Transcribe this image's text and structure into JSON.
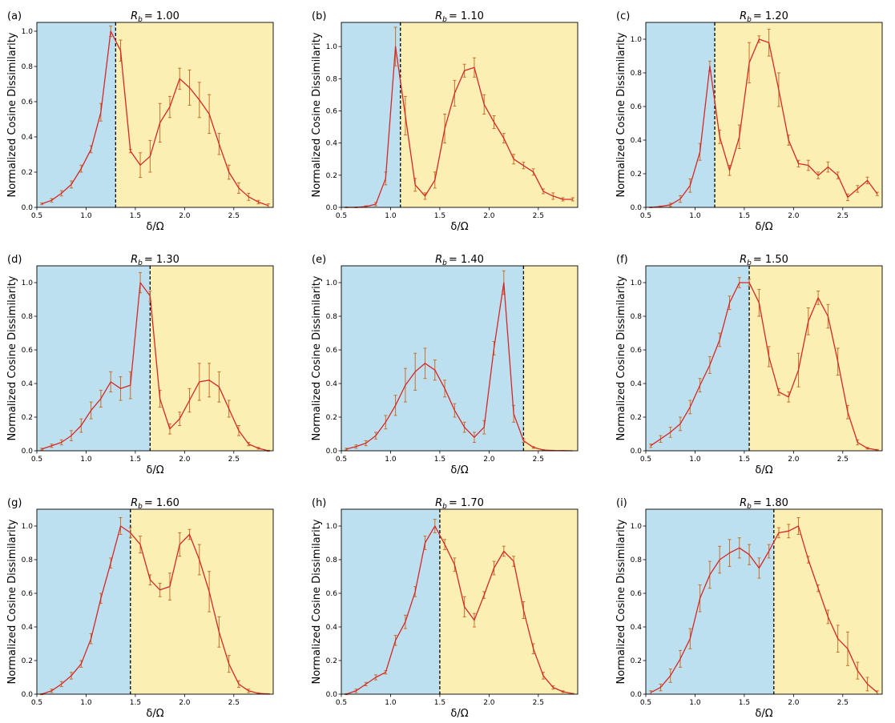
{
  "figure": {
    "colors": {
      "phase_left": "#bde0f0",
      "phase_right": "#fcefb4",
      "line": "#d62728",
      "errorbar": "#c8702a",
      "divider": "#000000"
    }
  },
  "chart_data": [
    {
      "type": "line",
      "panel": "(a)",
      "title_symbol": "R",
      "title_subscript": "b",
      "title_value": "= 1.00",
      "xlabel": "δ/Ω",
      "ylabel": "Normalized Cosine Dissimilarity",
      "xlim": [
        0.5,
        2.9
      ],
      "ylim": [
        0,
        1.05
      ],
      "xticks": [
        0.5,
        1.0,
        1.5,
        2.0,
        2.5
      ],
      "xtick_labels": [
        "0.5",
        "1.0",
        "1.5",
        "2.0",
        "2.5"
      ],
      "yticks": [
        0,
        0.2,
        0.4,
        0.6,
        0.8,
        1.0
      ],
      "ytick_labels": [
        "0.0",
        "0.2",
        "0.4",
        "0.6",
        "0.8",
        "1.0"
      ],
      "boundary": 1.3,
      "x": [
        0.55,
        0.65,
        0.75,
        0.85,
        0.95,
        1.05,
        1.15,
        1.25,
        1.35,
        1.45,
        1.55,
        1.65,
        1.75,
        1.85,
        1.95,
        2.05,
        2.15,
        2.25,
        2.35,
        2.45,
        2.55,
        2.65,
        2.75,
        2.85
      ],
      "y": [
        0.02,
        0.04,
        0.08,
        0.13,
        0.22,
        0.33,
        0.54,
        1.0,
        0.89,
        0.32,
        0.24,
        0.29,
        0.48,
        0.57,
        0.73,
        0.68,
        0.61,
        0.53,
        0.36,
        0.2,
        0.11,
        0.06,
        0.03,
        0.01
      ],
      "err": [
        0.005,
        0.01,
        0.015,
        0.02,
        0.02,
        0.02,
        0.05,
        0.03,
        0.06,
        0.01,
        0.07,
        0.09,
        0.11,
        0.06,
        0.06,
        0.1,
        0.1,
        0.11,
        0.06,
        0.04,
        0.03,
        0.02,
        0.01,
        0.01
      ]
    },
    {
      "type": "line",
      "panel": "(b)",
      "title_symbol": "R",
      "title_subscript": "b",
      "title_value": "= 1.10",
      "xlabel": "δ/Ω",
      "ylabel": "Normalized Cosine Dissimilarity",
      "xlim": [
        0.5,
        2.9
      ],
      "ylim": [
        0,
        1.15
      ],
      "xticks": [
        0.5,
        1.0,
        1.5,
        2.0,
        2.5
      ],
      "xtick_labels": [
        "0.5",
        "1.0",
        "1.5",
        "2.0",
        "2.5"
      ],
      "yticks": [
        0,
        0.2,
        0.4,
        0.6,
        0.8,
        1.0
      ],
      "ytick_labels": [
        "0.0",
        "0.2",
        "0.4",
        "0.6",
        "0.8",
        "1.0"
      ],
      "boundary": 1.1,
      "x": [
        0.55,
        0.65,
        0.75,
        0.85,
        0.95,
        1.05,
        1.15,
        1.25,
        1.35,
        1.45,
        1.55,
        1.65,
        1.75,
        1.85,
        1.95,
        2.05,
        2.15,
        2.25,
        2.35,
        2.45,
        2.55,
        2.65,
        2.75,
        2.85
      ],
      "y": [
        0.0,
        0.0,
        0.005,
        0.02,
        0.18,
        1.0,
        0.57,
        0.14,
        0.07,
        0.17,
        0.49,
        0.71,
        0.85,
        0.87,
        0.64,
        0.53,
        0.43,
        0.3,
        0.26,
        0.22,
        0.1,
        0.07,
        0.05,
        0.05
      ],
      "err": [
        0.002,
        0.002,
        0.005,
        0.01,
        0.04,
        0.12,
        0.12,
        0.04,
        0.02,
        0.05,
        0.09,
        0.08,
        0.04,
        0.06,
        0.06,
        0.04,
        0.03,
        0.03,
        0.02,
        0.02,
        0.015,
        0.02,
        0.01,
        0.01
      ]
    },
    {
      "type": "line",
      "panel": "(c)",
      "title_symbol": "R",
      "title_subscript": "b",
      "title_value": "= 1.20",
      "xlabel": "δ/Ω",
      "ylabel": "Normalized Cosine Dissimilarity",
      "xlim": [
        0.5,
        2.9
      ],
      "ylim": [
        0,
        1.1
      ],
      "xticks": [
        0.5,
        1.0,
        1.5,
        2.0,
        2.5
      ],
      "xtick_labels": [
        "0.5",
        "1.0",
        "1.5",
        "2.0",
        "2.5"
      ],
      "yticks": [
        0,
        0.2,
        0.4,
        0.6,
        0.8,
        1.0
      ],
      "ytick_labels": [
        "0.0",
        "0.2",
        "0.4",
        "0.6",
        "0.8",
        "1.0"
      ],
      "boundary": 1.2,
      "x": [
        0.55,
        0.65,
        0.75,
        0.85,
        0.95,
        1.05,
        1.15,
        1.25,
        1.35,
        1.45,
        1.55,
        1.65,
        1.75,
        1.85,
        1.95,
        2.05,
        2.15,
        2.25,
        2.35,
        2.45,
        2.55,
        2.65,
        2.75,
        2.85
      ],
      "y": [
        0.0,
        0.005,
        0.015,
        0.05,
        0.13,
        0.33,
        0.84,
        0.42,
        0.22,
        0.42,
        0.86,
        1.0,
        0.98,
        0.7,
        0.4,
        0.26,
        0.25,
        0.19,
        0.24,
        0.19,
        0.06,
        0.11,
        0.16,
        0.08
      ],
      "err": [
        0.002,
        0.003,
        0.01,
        0.02,
        0.04,
        0.05,
        0.03,
        0.04,
        0.03,
        0.07,
        0.12,
        0.02,
        0.08,
        0.1,
        0.03,
        0.02,
        0.03,
        0.02,
        0.03,
        0.02,
        0.02,
        0.02,
        0.02,
        0.01
      ]
    },
    {
      "type": "line",
      "panel": "(d)",
      "title_symbol": "R",
      "title_subscript": "b",
      "title_value": "= 1.30",
      "xlabel": "δ/Ω",
      "ylabel": "Normalized Cosine Dissimilarity",
      "xlim": [
        0.5,
        2.9
      ],
      "ylim": [
        0,
        1.1
      ],
      "xticks": [
        0.5,
        1.0,
        1.5,
        2.0,
        2.5
      ],
      "xtick_labels": [
        "0.5",
        "1.0",
        "1.5",
        "2.0",
        "2.5"
      ],
      "yticks": [
        0,
        0.2,
        0.4,
        0.6,
        0.8,
        1.0
      ],
      "ytick_labels": [
        "0.0",
        "0.2",
        "0.4",
        "0.6",
        "0.8",
        "1.0"
      ],
      "boundary": 1.65,
      "x": [
        0.55,
        0.65,
        0.75,
        0.85,
        0.95,
        1.05,
        1.15,
        1.25,
        1.35,
        1.45,
        1.55,
        1.65,
        1.75,
        1.85,
        1.95,
        2.05,
        2.15,
        2.25,
        2.35,
        2.45,
        2.55,
        2.65,
        2.75,
        2.85
      ],
      "y": [
        0.01,
        0.03,
        0.05,
        0.09,
        0.15,
        0.24,
        0.31,
        0.41,
        0.37,
        0.39,
        1.0,
        0.92,
        0.31,
        0.13,
        0.19,
        0.3,
        0.41,
        0.42,
        0.38,
        0.25,
        0.12,
        0.04,
        0.015,
        0.0
      ],
      "err": [
        0.005,
        0.01,
        0.015,
        0.03,
        0.04,
        0.05,
        0.05,
        0.06,
        0.07,
        0.08,
        0.06,
        0.03,
        0.05,
        0.03,
        0.04,
        0.07,
        0.11,
        0.1,
        0.09,
        0.05,
        0.03,
        0.01,
        0.005,
        0.003
      ]
    },
    {
      "type": "line",
      "panel": "(e)",
      "title_symbol": "R",
      "title_subscript": "b",
      "title_value": "= 1.40",
      "xlabel": "δ/Ω",
      "ylabel": "Normalized Cosine Dissimilarity",
      "xlim": [
        0.5,
        2.9
      ],
      "ylim": [
        0,
        1.1
      ],
      "xticks": [
        0.5,
        1.0,
        1.5,
        2.0,
        2.5
      ],
      "xtick_labels": [
        "0.5",
        "1.0",
        "1.5",
        "2.0",
        "2.5"
      ],
      "yticks": [
        0,
        0.2,
        0.4,
        0.6,
        0.8,
        1.0
      ],
      "ytick_labels": [
        "0.0",
        "0.2",
        "0.4",
        "0.6",
        "0.8",
        "1.0"
      ],
      "boundary": 2.35,
      "x": [
        0.55,
        0.65,
        0.75,
        0.85,
        0.95,
        1.05,
        1.15,
        1.25,
        1.35,
        1.45,
        1.55,
        1.65,
        1.75,
        1.85,
        1.95,
        2.05,
        2.15,
        2.25,
        2.35,
        2.45,
        2.55,
        2.65,
        2.75,
        2.85
      ],
      "y": [
        0.01,
        0.025,
        0.045,
        0.09,
        0.17,
        0.27,
        0.39,
        0.47,
        0.52,
        0.48,
        0.37,
        0.24,
        0.14,
        0.08,
        0.14,
        0.61,
        1.0,
        0.22,
        0.06,
        0.02,
        0.005,
        0.002,
        0.001,
        0.0
      ],
      "err": [
        0.005,
        0.01,
        0.015,
        0.02,
        0.04,
        0.06,
        0.1,
        0.11,
        0.09,
        0.06,
        0.05,
        0.04,
        0.03,
        0.03,
        0.04,
        0.04,
        0.07,
        0.05,
        0.01,
        0.005,
        0.002,
        0.001,
        0.001,
        0.0
      ]
    },
    {
      "type": "line",
      "panel": "(f)",
      "title_symbol": "R",
      "title_subscript": "b",
      "title_value": "= 1.50",
      "xlabel": "δ/Ω",
      "ylabel": "Normalized Cosine Dissimilarity",
      "xlim": [
        0.5,
        2.9
      ],
      "ylim": [
        0,
        1.1
      ],
      "xticks": [
        0.5,
        1.0,
        1.5,
        2.0,
        2.5
      ],
      "xtick_labels": [
        "0.5",
        "1.0",
        "1.5",
        "2.0",
        "2.5"
      ],
      "yticks": [
        0,
        0.2,
        0.4,
        0.6,
        0.8,
        1.0
      ],
      "ytick_labels": [
        "0.0",
        "0.2",
        "0.4",
        "0.6",
        "0.8",
        "1.0"
      ],
      "boundary": 1.55,
      "x": [
        0.55,
        0.65,
        0.75,
        0.85,
        0.95,
        1.05,
        1.15,
        1.25,
        1.35,
        1.45,
        1.55,
        1.65,
        1.75,
        1.85,
        1.95,
        2.05,
        2.15,
        2.25,
        2.35,
        2.45,
        2.55,
        2.65,
        2.75,
        2.85
      ],
      "y": [
        0.03,
        0.07,
        0.11,
        0.16,
        0.26,
        0.39,
        0.51,
        0.66,
        0.88,
        1.0,
        1.0,
        0.88,
        0.56,
        0.35,
        0.32,
        0.48,
        0.77,
        0.91,
        0.8,
        0.53,
        0.23,
        0.05,
        0.015,
        0.005
      ],
      "err": [
        0.01,
        0.02,
        0.03,
        0.04,
        0.04,
        0.04,
        0.05,
        0.04,
        0.04,
        0.03,
        0.02,
        0.08,
        0.06,
        0.02,
        0.03,
        0.1,
        0.08,
        0.04,
        0.07,
        0.08,
        0.04,
        0.015,
        0.005,
        0.003
      ]
    },
    {
      "type": "line",
      "panel": "(g)",
      "title_symbol": "R",
      "title_subscript": "b",
      "title_value": "= 1.60",
      "xlabel": "δ/Ω",
      "ylabel": "Normalized Cosine Dissimilarity",
      "xlim": [
        0.5,
        2.9
      ],
      "ylim": [
        0,
        1.1
      ],
      "xticks": [
        0.5,
        1.0,
        1.5,
        2.0,
        2.5
      ],
      "xtick_labels": [
        "0.5",
        "1.0",
        "1.5",
        "2.0",
        "2.5"
      ],
      "yticks": [
        0,
        0.2,
        0.4,
        0.6,
        0.8,
        1.0
      ],
      "ytick_labels": [
        "0.0",
        "0.2",
        "0.4",
        "0.6",
        "0.8",
        "1.0"
      ],
      "boundary": 1.45,
      "x": [
        0.55,
        0.65,
        0.75,
        0.85,
        0.95,
        1.05,
        1.15,
        1.25,
        1.35,
        1.45,
        1.55,
        1.65,
        1.75,
        1.85,
        1.95,
        2.05,
        2.15,
        2.25,
        2.35,
        2.45,
        2.55,
        2.65,
        2.75,
        2.85
      ],
      "y": [
        0.0,
        0.02,
        0.06,
        0.11,
        0.18,
        0.33,
        0.57,
        0.78,
        1.0,
        0.96,
        0.89,
        0.68,
        0.62,
        0.64,
        0.89,
        0.95,
        0.8,
        0.61,
        0.37,
        0.18,
        0.06,
        0.02,
        0.005,
        0.002
      ],
      "err": [
        0.003,
        0.01,
        0.015,
        0.02,
        0.02,
        0.03,
        0.03,
        0.03,
        0.05,
        0.03,
        0.05,
        0.03,
        0.04,
        0.08,
        0.07,
        0.03,
        0.09,
        0.12,
        0.09,
        0.05,
        0.02,
        0.01,
        0.003,
        0.001
      ]
    },
    {
      "type": "line",
      "panel": "(h)",
      "title_symbol": "R",
      "title_subscript": "b",
      "title_value": "= 1.70",
      "xlabel": "δ/Ω",
      "ylabel": "Normalized Cosine Dissimilarity",
      "xlim": [
        0.5,
        2.9
      ],
      "ylim": [
        0,
        1.1
      ],
      "xticks": [
        0.5,
        1.0,
        1.5,
        2.0,
        2.5
      ],
      "xtick_labels": [
        "0.5",
        "1.0",
        "1.5",
        "2.0",
        "2.5"
      ],
      "yticks": [
        0,
        0.2,
        0.4,
        0.6,
        0.8,
        1.0
      ],
      "ytick_labels": [
        "0.0",
        "0.2",
        "0.4",
        "0.6",
        "0.8",
        "1.0"
      ],
      "boundary": 1.5,
      "x": [
        0.55,
        0.65,
        0.75,
        0.85,
        0.95,
        1.05,
        1.15,
        1.25,
        1.35,
        1.45,
        1.55,
        1.65,
        1.75,
        1.85,
        1.95,
        2.05,
        2.15,
        2.25,
        2.35,
        2.45,
        2.55,
        2.65,
        2.75,
        2.85
      ],
      "y": [
        0.0,
        0.02,
        0.06,
        0.1,
        0.13,
        0.32,
        0.43,
        0.61,
        0.9,
        1.0,
        0.89,
        0.77,
        0.52,
        0.44,
        0.59,
        0.75,
        0.85,
        0.79,
        0.5,
        0.27,
        0.11,
        0.04,
        0.015,
        0.003
      ],
      "err": [
        0.003,
        0.01,
        0.01,
        0.015,
        0.01,
        0.03,
        0.04,
        0.03,
        0.04,
        0.04,
        0.03,
        0.04,
        0.06,
        0.04,
        0.02,
        0.04,
        0.03,
        0.03,
        0.05,
        0.03,
        0.02,
        0.01,
        0.005,
        0.002
      ]
    },
    {
      "type": "line",
      "panel": "(i)",
      "title_symbol": "R",
      "title_subscript": "b",
      "title_value": "= 1.80",
      "xlabel": "δ/Ω",
      "ylabel": "Normalized Cosine Dissimilarity",
      "xlim": [
        0.5,
        2.9
      ],
      "ylim": [
        0,
        1.1
      ],
      "xticks": [
        0.5,
        1.0,
        1.5,
        2.0,
        2.5
      ],
      "xtick_labels": [
        "0.5",
        "1.0",
        "1.5",
        "2.0",
        "2.5"
      ],
      "yticks": [
        0,
        0.2,
        0.4,
        0.6,
        0.8,
        1.0
      ],
      "ytick_labels": [
        "0.0",
        "0.2",
        "0.4",
        "0.6",
        "0.8",
        "1.0"
      ],
      "boundary": 1.8,
      "x": [
        0.55,
        0.65,
        0.75,
        0.85,
        0.95,
        1.05,
        1.15,
        1.25,
        1.35,
        1.45,
        1.55,
        1.65,
        1.75,
        1.85,
        1.95,
        2.05,
        2.15,
        2.25,
        2.35,
        2.45,
        2.55,
        2.65,
        2.75,
        2.85
      ],
      "y": [
        0.01,
        0.04,
        0.11,
        0.21,
        0.33,
        0.57,
        0.71,
        0.8,
        0.84,
        0.87,
        0.83,
        0.75,
        0.85,
        0.96,
        0.97,
        1.0,
        0.8,
        0.63,
        0.46,
        0.33,
        0.27,
        0.14,
        0.06,
        0.01
      ],
      "err": [
        0.01,
        0.02,
        0.04,
        0.05,
        0.06,
        0.08,
        0.08,
        0.08,
        0.08,
        0.06,
        0.06,
        0.06,
        0.04,
        0.03,
        0.04,
        0.05,
        0.02,
        0.02,
        0.04,
        0.08,
        0.1,
        0.05,
        0.04,
        0.01
      ]
    }
  ]
}
